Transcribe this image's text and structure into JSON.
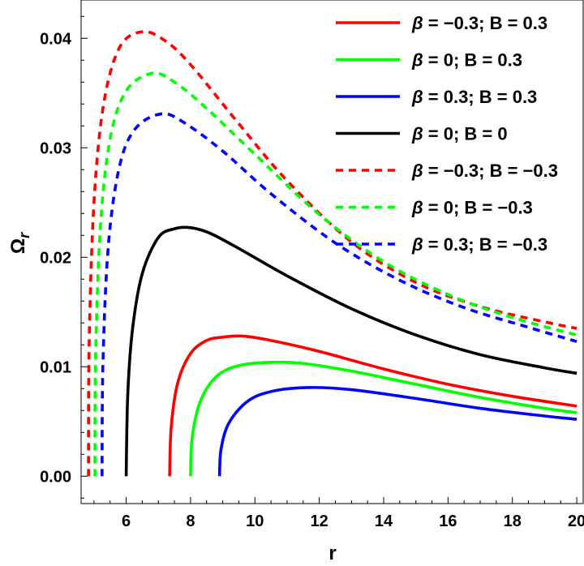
{
  "chart_data": {
    "type": "line",
    "title": "",
    "xlabel": "r",
    "ylabel_base": "Ω",
    "ylabel_sub": "r",
    "xlim": [
      4.6,
      20.2
    ],
    "ylim": [
      -0.0025,
      0.0435
    ],
    "xticks": [
      6,
      8,
      10,
      12,
      14,
      16,
      18,
      20
    ],
    "yticks": [
      0.0,
      0.01,
      0.02,
      0.03,
      0.04
    ],
    "xtick_labels": [
      "6",
      "8",
      "10",
      "12",
      "14",
      "16",
      "18",
      "20"
    ],
    "ytick_labels": [
      "0.00",
      "0.01",
      "0.02",
      "0.03",
      "0.04"
    ],
    "grid": false,
    "legend_position": "top-right",
    "series": [
      {
        "name": "β = −0.3; B = 0.3",
        "legend": [
          "β",
          " = −0.3; B = 0.3"
        ],
        "color": "#ff0000",
        "dash": "solid",
        "x": [
          7.35,
          7.4,
          7.6,
          8.0,
          8.5,
          9.0,
          9.6,
          10.5,
          12,
          14,
          16,
          18,
          20
        ],
        "y": [
          0.0,
          0.0045,
          0.0085,
          0.0112,
          0.0124,
          0.0127,
          0.0128,
          0.0124,
          0.0114,
          0.0098,
          0.0084,
          0.0073,
          0.0064
        ]
      },
      {
        "name": "β = 0; B = 0.3",
        "legend": [
          "β",
          " = 0; B = 0.3"
        ],
        "color": "#00ff00",
        "dash": "solid",
        "x": [
          8.0,
          8.05,
          8.3,
          8.8,
          9.5,
          10.5,
          11.5,
          13,
          15,
          17,
          19,
          20
        ],
        "y": [
          0.0,
          0.0035,
          0.0068,
          0.0091,
          0.0101,
          0.0104,
          0.0103,
          0.0096,
          0.0084,
          0.0072,
          0.0062,
          0.0058
        ]
      },
      {
        "name": "β = 0.3; B = 0.3",
        "legend": [
          "β",
          " = 0.3; B = 0.3"
        ],
        "color": "#0000ff",
        "dash": "solid",
        "x": [
          8.9,
          8.95,
          9.2,
          9.8,
          10.6,
          11.7,
          13,
          15,
          17,
          19,
          20
        ],
        "y": [
          0.0,
          0.0025,
          0.0049,
          0.0069,
          0.0078,
          0.0081,
          0.0079,
          0.0071,
          0.0062,
          0.0055,
          0.0052
        ]
      },
      {
        "name": "β = 0; B = 0",
        "legend": [
          "β",
          " = 0; B = 0"
        ],
        "color": "#000000",
        "dash": "solid",
        "x": [
          6.0,
          6.05,
          6.2,
          6.5,
          7.0,
          7.5,
          8.0,
          8.6,
          9.5,
          11,
          13,
          15,
          17,
          19,
          20
        ],
        "y": [
          0.0,
          0.0075,
          0.0135,
          0.0185,
          0.0218,
          0.0226,
          0.0227,
          0.0222,
          0.0208,
          0.0183,
          0.0153,
          0.0129,
          0.0111,
          0.0099,
          0.0094
        ]
      },
      {
        "name": "β = −0.3; B = −0.3",
        "legend": [
          "β",
          " = −0.3; B = −0.3"
        ],
        "color": "#ff0000",
        "dash": "dashed",
        "x": [
          4.83,
          4.85,
          5.0,
          5.3,
          5.8,
          6.5,
          7.2,
          8.0,
          9.5,
          11,
          13,
          15,
          17,
          19,
          20
        ],
        "y": [
          0.0,
          0.012,
          0.025,
          0.034,
          0.0392,
          0.0406,
          0.0398,
          0.0376,
          0.0322,
          0.027,
          0.0214,
          0.0177,
          0.0155,
          0.0141,
          0.0135
        ]
      },
      {
        "name": "β = 0; B = −0.3",
        "legend": [
          "β",
          " = 0; B = −0.3"
        ],
        "color": "#00ff00",
        "dash": "dashed",
        "x": [
          5.03,
          5.05,
          5.2,
          5.5,
          6.0,
          6.8,
          7.5,
          8.5,
          10,
          12,
          14,
          16,
          18,
          20
        ],
        "y": [
          0.0,
          0.011,
          0.0228,
          0.0308,
          0.0352,
          0.0368,
          0.036,
          0.0336,
          0.0294,
          0.0239,
          0.0196,
          0.0166,
          0.0145,
          0.0129
        ]
      },
      {
        "name": "β = 0.3; B = −0.3",
        "legend": [
          "β",
          " = 0.3; B = −0.3"
        ],
        "color": "#0000ff",
        "dash": "dashed",
        "x": [
          5.25,
          5.28,
          5.45,
          5.8,
          6.3,
          7.1,
          7.8,
          9.0,
          10.5,
          12.5,
          14.5,
          16.5,
          18.5,
          20
        ],
        "y": [
          0.0,
          0.0105,
          0.0212,
          0.0284,
          0.0318,
          0.0331,
          0.0323,
          0.0297,
          0.0258,
          0.0213,
          0.0179,
          0.0154,
          0.0136,
          0.0123
        ]
      }
    ]
  }
}
